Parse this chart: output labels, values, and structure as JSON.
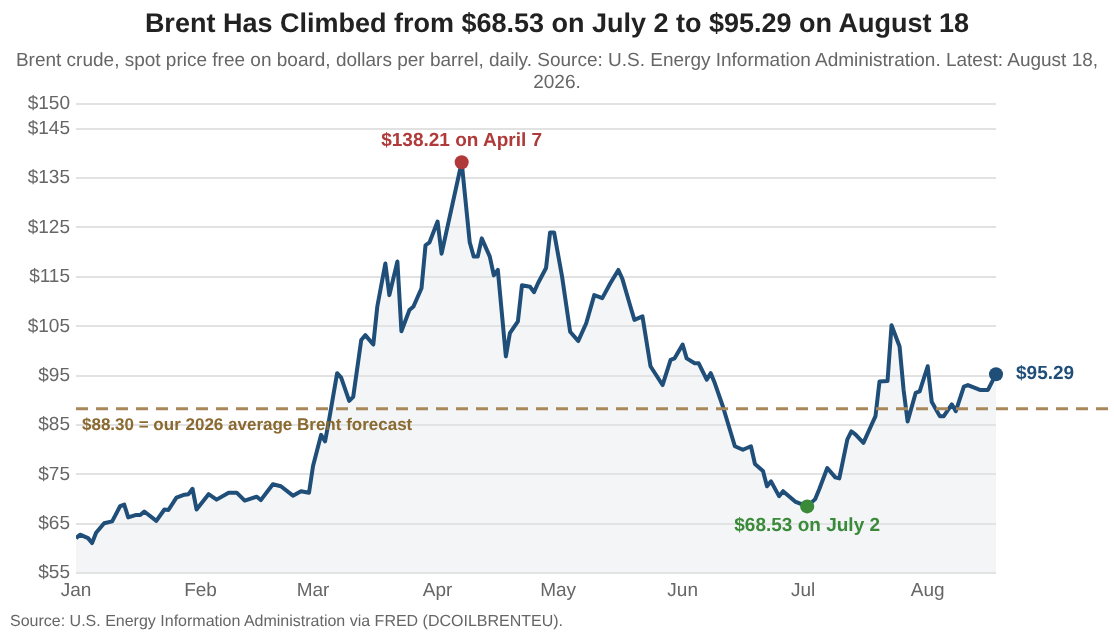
{
  "chart_data": {
    "type": "area",
    "title": "Brent Has Climbed from $68.53 on July 2 to $95.29 on August 18",
    "subtitle": "Brent crude, spot price free on board, dollars per barrel, daily. Source: U.S. Energy Information Administration. Latest: August 18, 2026.",
    "x": [
      "2026-01-01",
      "2026-01-02",
      "2026-01-04",
      "2026-01-05",
      "2026-01-06",
      "2026-01-08",
      "2026-01-10",
      "2026-01-12",
      "2026-01-13",
      "2026-01-14",
      "2026-01-16",
      "2026-01-17",
      "2026-01-18",
      "2026-01-21",
      "2026-01-23",
      "2026-01-24",
      "2026-01-26",
      "2026-01-28",
      "2026-01-29",
      "2026-01-30",
      "2026-01-31",
      "2026-02-03",
      "2026-02-05",
      "2026-02-08",
      "2026-02-10",
      "2026-02-12",
      "2026-02-15",
      "2026-02-16",
      "2026-02-19",
      "2026-02-21",
      "2026-02-24",
      "2026-02-26",
      "2026-02-28",
      "2026-03-01",
      "2026-03-03",
      "2026-03-04",
      "2026-03-05",
      "2026-03-07",
      "2026-03-08",
      "2026-03-10",
      "2026-03-11",
      "2026-03-13",
      "2026-03-14",
      "2026-03-16",
      "2026-03-17",
      "2026-03-19",
      "2026-03-20",
      "2026-03-22",
      "2026-03-23",
      "2026-03-25",
      "2026-03-26",
      "2026-03-28",
      "2026-03-29",
      "2026-03-30",
      "2026-04-01",
      "2026-04-02",
      "2026-04-07",
      "2026-04-09",
      "2026-04-10",
      "2026-04-11",
      "2026-04-12",
      "2026-04-14",
      "2026-04-15",
      "2026-04-16",
      "2026-04-18",
      "2026-04-19",
      "2026-04-21",
      "2026-04-22",
      "2026-04-24",
      "2026-04-25",
      "2026-04-26",
      "2026-04-28",
      "2026-04-29",
      "2026-04-30",
      "2026-05-01",
      "2026-05-02",
      "2026-05-04",
      "2026-05-06",
      "2026-05-08",
      "2026-05-10",
      "2026-05-12",
      "2026-05-14",
      "2026-05-16",
      "2026-05-17",
      "2026-05-19",
      "2026-05-20",
      "2026-05-22",
      "2026-05-24",
      "2026-05-27",
      "2026-05-29",
      "2026-05-30",
      "2026-06-01",
      "2026-06-02",
      "2026-06-04",
      "2026-06-05",
      "2026-06-07",
      "2026-06-08",
      "2026-06-09",
      "2026-06-11",
      "2026-06-14",
      "2026-06-16",
      "2026-06-18",
      "2026-06-19",
      "2026-06-21",
      "2026-06-22",
      "2026-06-23",
      "2026-06-25",
      "2026-06-26",
      "2026-06-29",
      "2026-07-02",
      "2026-07-04",
      "2026-07-05",
      "2026-07-07",
      "2026-07-09",
      "2026-07-10",
      "2026-07-12",
      "2026-07-13",
      "2026-07-14",
      "2026-07-16",
      "2026-07-18",
      "2026-07-19",
      "2026-07-20",
      "2026-07-22",
      "2026-07-23",
      "2026-07-25",
      "2026-07-26",
      "2026-07-27",
      "2026-07-29",
      "2026-07-30",
      "2026-08-01",
      "2026-08-02",
      "2026-08-04",
      "2026-08-05",
      "2026-08-07",
      "2026-08-08",
      "2026-08-10",
      "2026-08-11",
      "2026-08-14",
      "2026-08-16",
      "2026-08-18"
    ],
    "series": [
      {
        "color": "#1f4e79",
        "values": [
          62.1,
          62.8,
          62.1,
          61.1,
          63.2,
          65.1,
          65.5,
          68.6,
          68.9,
          66.3,
          66.8,
          66.8,
          67.5,
          65.6,
          67.9,
          67.8,
          70.3,
          70.9,
          71.0,
          72.1,
          67.9,
          71.0,
          69.9,
          71.3,
          71.3,
          69.7,
          70.5,
          69.8,
          73.0,
          72.6,
          70.7,
          71.6,
          71.3,
          76.7,
          83.0,
          81.7,
          86.1,
          95.5,
          94.6,
          89.9,
          90.7,
          102.2,
          103.2,
          101.3,
          109.0,
          117.7,
          111.3,
          118.1,
          104.0,
          108.3,
          109.0,
          112.7,
          121.4,
          122.0,
          126.2,
          119.7,
          138.21,
          122.0,
          119.1,
          119.1,
          122.8,
          119.1,
          115.3,
          116.4,
          98.9,
          103.6,
          106.0,
          113.3,
          113.0,
          111.9,
          113.7,
          116.8,
          124.0,
          124.0,
          119.5,
          115.0,
          103.9,
          102.0,
          105.6,
          111.3,
          110.7,
          113.7,
          116.4,
          114.6,
          109.0,
          106.3,
          107.0,
          96.9,
          93.1,
          98.2,
          98.5,
          101.3,
          98.5,
          97.5,
          97.5,
          94.2,
          95.5,
          93.5,
          88.8,
          80.7,
          80.0,
          80.7,
          77.1,
          75.7,
          72.6,
          73.6,
          70.6,
          71.6,
          69.5,
          68.53,
          70.0,
          72.0,
          76.3,
          74.4,
          74.2,
          82.1,
          83.7,
          83.1,
          81.4,
          85.0,
          86.8,
          93.8,
          93.9,
          105.2,
          100.9,
          92.1,
          85.7,
          91.5,
          91.8,
          96.9,
          89.7,
          86.8,
          86.8,
          89.2,
          87.8,
          92.8,
          93.1,
          92.1,
          92.1,
          95.29
        ]
      }
    ],
    "xlim": [
      "2026-01-01",
      "2026-08-18"
    ],
    "xticks": [
      {
        "value": "2026-01-01",
        "label": "Jan"
      },
      {
        "value": "2026-02-01",
        "label": "Feb"
      },
      {
        "value": "2026-03-01",
        "label": "Mar"
      },
      {
        "value": "2026-04-01",
        "label": "Apr"
      },
      {
        "value": "2026-05-01",
        "label": "May"
      },
      {
        "value": "2026-06-01",
        "label": "Jun"
      },
      {
        "value": "2026-07-01",
        "label": "Jul"
      },
      {
        "value": "2026-08-01",
        "label": "Aug"
      }
    ],
    "ylim": [
      55,
      150
    ],
    "yticks": [
      {
        "value": 55,
        "label": "$55"
      },
      {
        "value": 65,
        "label": "$65"
      },
      {
        "value": 75,
        "label": "$75"
      },
      {
        "value": 85,
        "label": "$85"
      },
      {
        "value": 95,
        "label": "$95"
      },
      {
        "value": 105,
        "label": "$105"
      },
      {
        "value": 115,
        "label": "$115"
      },
      {
        "value": 125,
        "label": "$125"
      },
      {
        "value": 135,
        "label": "$135"
      },
      {
        "value": 145,
        "label": "$145"
      },
      {
        "value": 150,
        "label": "$150"
      }
    ],
    "grid": "y",
    "legend": false,
    "marker": "none",
    "line_style": "solid",
    "ref_lines": [
      {
        "axis": "y",
        "value": 88.3,
        "label": "$88.30 = our 2026 average Brent forecast",
        "color": "#a8885a",
        "line_style": "dashed"
      }
    ],
    "annotations": [
      {
        "text": "$138.21 on April 7",
        "x": "2026-04-07",
        "y": 138.21
      },
      {
        "text": "$68.53 on July 2",
        "x": "2026-07-02",
        "y": 68.53
      },
      {
        "text": "$95.29",
        "x": "2026-08-18",
        "y": 95.29
      },
      "Source: U.S. Energy Information Administration via FRED (DCOILBRENTEU)."
    ]
  }
}
